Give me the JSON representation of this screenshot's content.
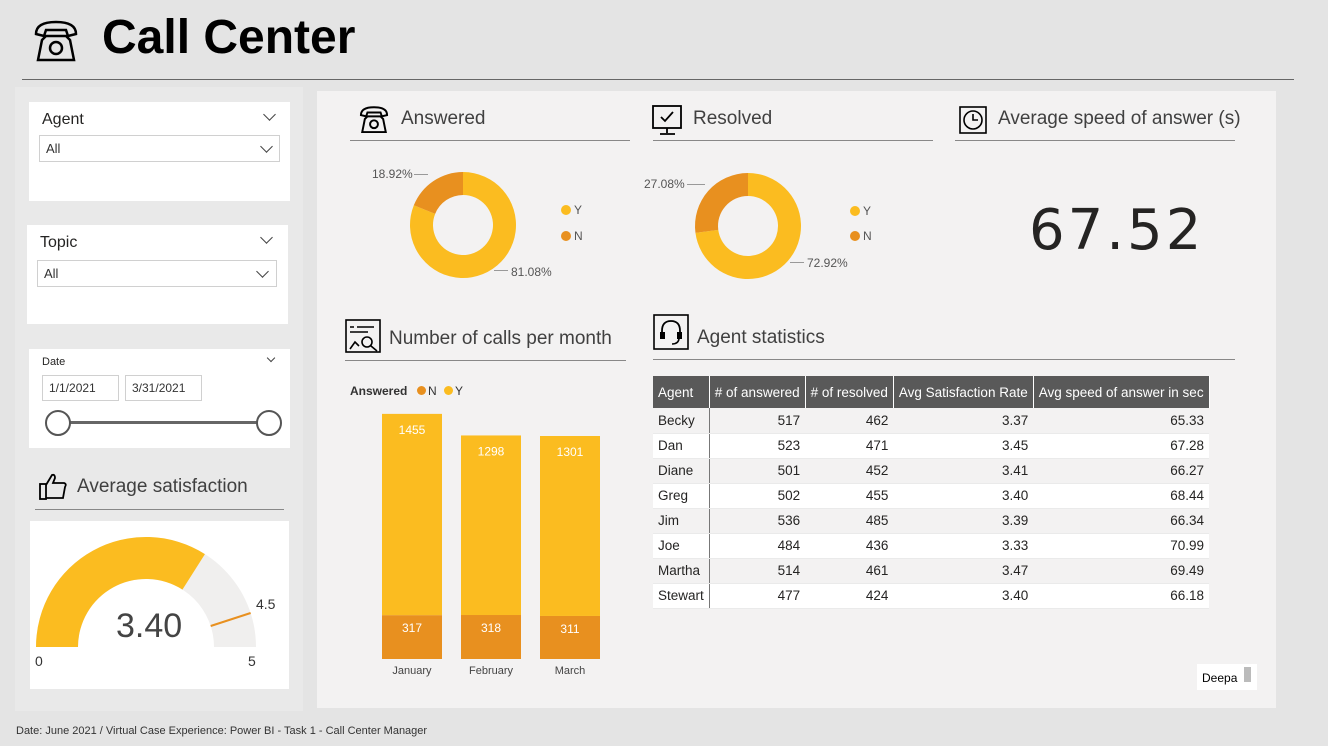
{
  "header": {
    "title": "Call Center",
    "icon": "telephone-icon"
  },
  "slicers": {
    "agent": {
      "title": "Agent",
      "value": "All"
    },
    "topic": {
      "title": "Topic",
      "value": "All"
    },
    "date": {
      "title": "Date",
      "start": "1/1/2021",
      "end": "3/31/2021"
    }
  },
  "avg_satisfaction": {
    "title": "Average satisfaction",
    "value": "3.40",
    "min_label": "0",
    "max_label": "5",
    "target_label": "4.5",
    "value_num": 3.4,
    "min": 0,
    "max": 5,
    "target": 4.5
  },
  "answered": {
    "title": "Answered",
    "label_n": "18.92%",
    "label_y": "81.08%",
    "legend_y": "Y",
    "legend_n": "N"
  },
  "resolved": {
    "title": "Resolved",
    "label_n": "27.08%",
    "label_y": "72.92%",
    "legend_y": "Y",
    "legend_n": "N"
  },
  "speed": {
    "title": "Average speed of answer (s)",
    "value": "67.52"
  },
  "calls": {
    "title": "Number of calls per month",
    "legend_title": "Answered",
    "legend_n": "N",
    "legend_y": "Y"
  },
  "agent_stats": {
    "title": "Agent statistics",
    "columns": [
      "Agent",
      "# of answered",
      "# of resolved",
      "Avg Satisfaction Rate",
      "Avg speed of answer in sec"
    ],
    "rows": [
      [
        "Becky",
        "517",
        "462",
        "3.37",
        "65.33"
      ],
      [
        "Dan",
        "523",
        "471",
        "3.45",
        "67.28"
      ],
      [
        "Diane",
        "501",
        "452",
        "3.41",
        "66.27"
      ],
      [
        "Greg",
        "502",
        "455",
        "3.40",
        "68.44"
      ],
      [
        "Jim",
        "536",
        "485",
        "3.39",
        "66.34"
      ],
      [
        "Joe",
        "484",
        "436",
        "3.33",
        "70.99"
      ],
      [
        "Martha",
        "514",
        "461",
        "3.47",
        "69.49"
      ],
      [
        "Stewart",
        "477",
        "424",
        "3.40",
        "66.18"
      ]
    ]
  },
  "tag": "Deepa",
  "footer": "Date: June 2021 / Virtual Case Experience: Power BI - Task 1 - Call Center Manager",
  "colors": {
    "yellow": "#fbbc20",
    "orange": "#e8901f",
    "gauge_bg": "#f0efee"
  },
  "chart_data": [
    {
      "type": "pie",
      "title": "Answered",
      "categories": [
        "Y",
        "N"
      ],
      "values": [
        81.08,
        18.92
      ]
    },
    {
      "type": "pie",
      "title": "Resolved",
      "categories": [
        "Y",
        "N"
      ],
      "values": [
        72.92,
        27.08
      ]
    },
    {
      "type": "bar",
      "title": "Number of calls per month",
      "categories": [
        "January",
        "February",
        "March"
      ],
      "series": [
        {
          "name": "N",
          "values": [
            317,
            318,
            311
          ]
        },
        {
          "name": "Y",
          "values": [
            1455,
            1298,
            1301
          ]
        }
      ]
    }
  ]
}
